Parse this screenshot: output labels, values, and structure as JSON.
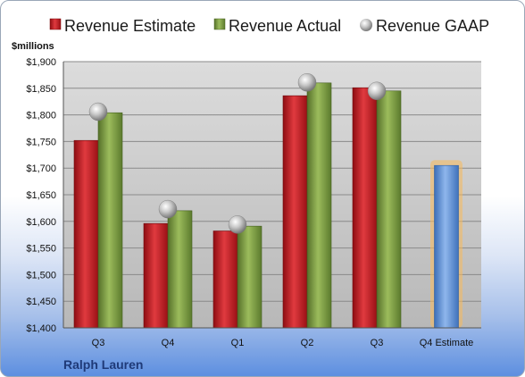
{
  "chart_data": {
    "type": "bar",
    "unit_label": "$millions",
    "company": "Ralph Lauren",
    "categories": [
      "Q3",
      "Q4",
      "Q1",
      "Q2",
      "Q3",
      "Q4 Estimate"
    ],
    "ylim": [
      1400,
      1900
    ],
    "yticks": [
      1400,
      1450,
      1500,
      1550,
      1600,
      1650,
      1700,
      1750,
      1800,
      1850,
      1900
    ],
    "ytick_labels": [
      "$1,400",
      "$1,450",
      "$1,500",
      "$1,550",
      "$1,600",
      "$1,650",
      "$1,700",
      "$1,750",
      "$1,800",
      "$1,850",
      "$1,900"
    ],
    "grid": true,
    "legend_position": "top",
    "series": [
      {
        "name": "Revenue Estimate",
        "color": "#c8161d",
        "values": [
          1752,
          1596,
          1582,
          1836,
          1851,
          null
        ]
      },
      {
        "name": "Revenue Actual",
        "color": "#7a9a3a",
        "values": [
          1804,
          1620,
          1591,
          1860,
          1845,
          null
        ]
      },
      {
        "name": "Revenue GAAP",
        "color": "#a8a8a8",
        "values": [
          1806,
          1623,
          1594,
          1861,
          1845,
          null
        ]
      }
    ],
    "forecast": {
      "category": "Q4 Estimate",
      "value": 1705,
      "color": "#5b8fd6"
    }
  }
}
